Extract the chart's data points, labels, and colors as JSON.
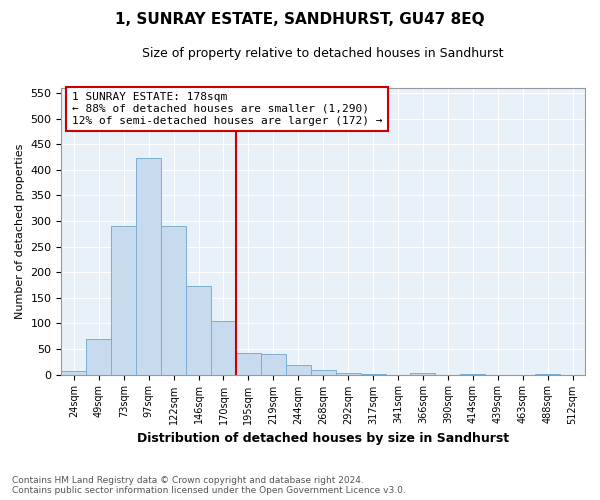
{
  "title": "1, SUNRAY ESTATE, SANDHURST, GU47 8EQ",
  "subtitle": "Size of property relative to detached houses in Sandhurst",
  "xlabel": "Distribution of detached houses by size in Sandhurst",
  "ylabel": "Number of detached properties",
  "bar_color": "#c8daee",
  "bar_edge_color": "#7badd4",
  "highlight_color": "#cc0000",
  "background_color": "#e8f0f8",
  "grid_color": "#ffffff",
  "bins": [
    "24sqm",
    "49sqm",
    "73sqm",
    "97sqm",
    "122sqm",
    "146sqm",
    "170sqm",
    "195sqm",
    "219sqm",
    "244sqm",
    "268sqm",
    "292sqm",
    "317sqm",
    "341sqm",
    "366sqm",
    "390sqm",
    "414sqm",
    "439sqm",
    "463sqm",
    "488sqm",
    "512sqm"
  ],
  "values": [
    7,
    70,
    291,
    424,
    291,
    173,
    105,
    43,
    40,
    19,
    8,
    3,
    2,
    0,
    3,
    0,
    2,
    0,
    0,
    2,
    0
  ],
  "vline_x": 7.0,
  "annotation_title": "1 SUNRAY ESTATE: 178sqm",
  "annotation_line1": "← 88% of detached houses are smaller (1,290)",
  "annotation_line2": "12% of semi-detached houses are larger (172) →",
  "ylim": [
    0,
    560
  ],
  "yticks": [
    0,
    50,
    100,
    150,
    200,
    250,
    300,
    350,
    400,
    450,
    500,
    550
  ],
  "footer1": "Contains HM Land Registry data © Crown copyright and database right 2024.",
  "footer2": "Contains public sector information licensed under the Open Government Licence v3.0."
}
